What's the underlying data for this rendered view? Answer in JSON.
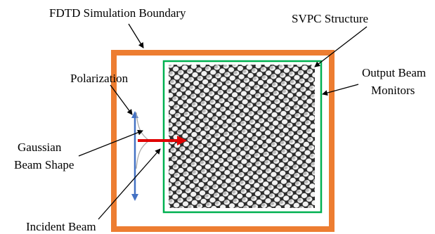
{
  "labels": {
    "boundary": "FDTD Simulation Boundary",
    "structure": "SVPC Structure",
    "monitors": [
      "Output Beam",
      "Monitors"
    ],
    "polarization": "Polarization",
    "beam_shape": [
      "Gaussian",
      "Beam Shape"
    ],
    "incident": "Incident Beam"
  }
}
